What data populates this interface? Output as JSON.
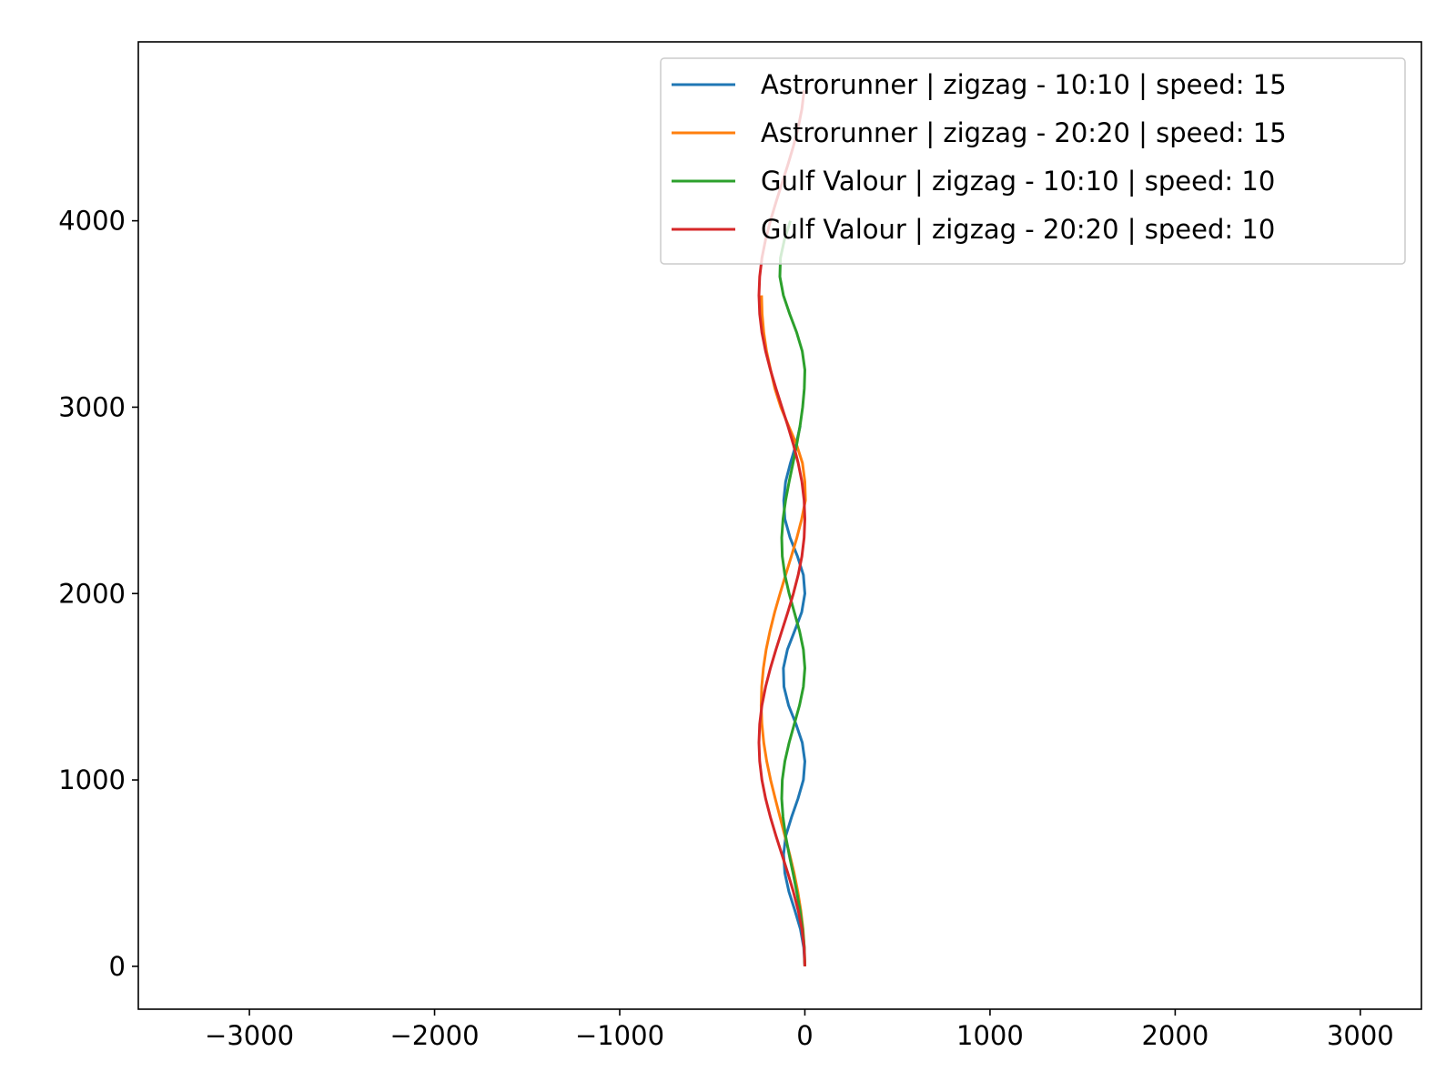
{
  "chart_data": {
    "type": "line",
    "title": "",
    "xlabel": "",
    "ylabel": "",
    "xlim": [
      -3600,
      3330
    ],
    "ylim": [
      -230,
      4960
    ],
    "xticks": [
      -3000,
      -2000,
      -1000,
      0,
      1000,
      2000,
      3000
    ],
    "yticks": [
      0,
      1000,
      2000,
      3000,
      4000
    ],
    "xtick_labels": [
      "−3000",
      "−2000",
      "−1000",
      "0",
      "1000",
      "2000",
      "3000"
    ],
    "ytick_labels": [
      "0",
      "1000",
      "2000",
      "3000",
      "4000"
    ],
    "grid": false,
    "legend_position": "upper-right",
    "series": [
      {
        "name": "Astrorunner | zigzag - 10:10 | speed: 15",
        "color": "#1f77b4",
        "x": [
          0,
          -6,
          -24,
          -54,
          -86,
          -108,
          -115,
          -103,
          -72,
          -37,
          -8,
          0,
          -14,
          -48,
          -88,
          -113,
          -116,
          -94,
          -55,
          -17,
          0,
          -8,
          -40,
          -80,
          -108,
          -114,
          -104,
          -78,
          -48,
          -25
        ],
        "y": [
          0,
          100,
          200,
          300,
          400,
          500,
          600,
          700,
          800,
          900,
          1000,
          1100,
          1200,
          1300,
          1400,
          1500,
          1600,
          1700,
          1800,
          1900,
          2000,
          2100,
          2200,
          2300,
          2400,
          2500,
          2600,
          2700,
          2800,
          2900
        ]
      },
      {
        "name": "Astrorunner | zigzag - 20:20 | speed: 15",
        "color": "#ff7f0e",
        "x": [
          0,
          -3,
          -10,
          -22,
          -38,
          -58,
          -82,
          -108,
          -134,
          -160,
          -185,
          -206,
          -222,
          -232,
          -236,
          -233,
          -224,
          -209,
          -188,
          -163,
          -134,
          -104,
          -73,
          -43,
          -17,
          3,
          0,
          -13,
          -45,
          -88,
          -130,
          -162,
          -185,
          -207,
          -222,
          -231,
          -234
        ],
        "y": [
          0,
          100,
          200,
          300,
          400,
          500,
          600,
          700,
          800,
          900,
          1000,
          1100,
          1200,
          1300,
          1400,
          1500,
          1600,
          1700,
          1800,
          1900,
          2000,
          2100,
          2200,
          2300,
          2400,
          2500,
          2600,
          2700,
          2800,
          2900,
          3000,
          3100,
          3200,
          3300,
          3400,
          3500,
          3600
        ]
      },
      {
        "name": "Gulf Valour | zigzag - 10:10 | speed: 10",
        "color": "#2ca02c",
        "x": [
          0,
          -3,
          -12,
          -26,
          -44,
          -64,
          -85,
          -104,
          -118,
          -125,
          -122,
          -108,
          -85,
          -57,
          -29,
          -8,
          0,
          -8,
          -29,
          -57,
          -85,
          -108,
          -122,
          -125,
          -118,
          -104,
          -85,
          -64,
          -44,
          -26,
          -12,
          -3,
          0,
          -14,
          -44,
          -82,
          -116,
          -135,
          -132,
          -110,
          -78
        ],
        "y": [
          0,
          100,
          200,
          300,
          400,
          500,
          600,
          700,
          800,
          900,
          1000,
          1100,
          1200,
          1300,
          1400,
          1500,
          1600,
          1700,
          1800,
          1900,
          2000,
          2100,
          2200,
          2300,
          2400,
          2500,
          2600,
          2700,
          2800,
          2900,
          3000,
          3100,
          3200,
          3300,
          3400,
          3500,
          3600,
          3700,
          3800,
          3900,
          4000
        ]
      },
      {
        "name": "Gulf Valour | zigzag - 20:20 | speed: 10",
        "color": "#d62728",
        "x": [
          0,
          -4,
          -16,
          -36,
          -62,
          -92,
          -124,
          -156,
          -186,
          -212,
          -232,
          -244,
          -248,
          -244,
          -232,
          -212,
          -186,
          -156,
          -124,
          -92,
          -62,
          -36,
          -16,
          -4,
          0,
          -4,
          -16,
          -36,
          -62,
          -92,
          -124,
          -156,
          -186,
          -212,
          -232,
          -244,
          -248,
          -244,
          -232,
          -212,
          -186,
          -156,
          -124,
          -92,
          -62,
          -36,
          -16,
          -4
        ],
        "y": [
          0,
          100,
          200,
          300,
          400,
          500,
          600,
          700,
          800,
          900,
          1000,
          1100,
          1200,
          1300,
          1400,
          1500,
          1600,
          1700,
          1800,
          1900,
          2000,
          2100,
          2200,
          2300,
          2400,
          2500,
          2600,
          2700,
          2800,
          2900,
          3000,
          3100,
          3200,
          3300,
          3400,
          3500,
          3600,
          3700,
          3800,
          3900,
          4000,
          4100,
          4200,
          4300,
          4400,
          4500,
          4600,
          4700
        ]
      }
    ]
  }
}
